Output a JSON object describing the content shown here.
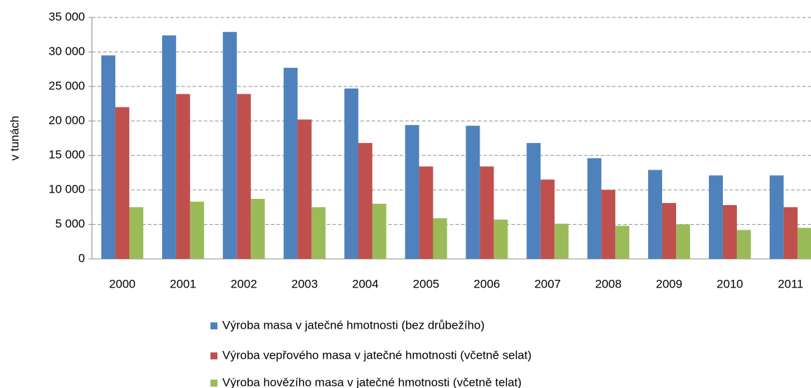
{
  "chart_data": {
    "type": "bar",
    "y_label": "v tunách",
    "categories": [
      "2000",
      "2001",
      "2002",
      "2003",
      "2004",
      "2005",
      "2006",
      "2007",
      "2008",
      "2009",
      "2010",
      "2011"
    ],
    "series": [
      {
        "name": "Výroba masa v jatečné hmotnosti (bez drůbežího)",
        "color": "#4f81bd",
        "values": [
          29500,
          32400,
          32900,
          27700,
          24700,
          19400,
          19300,
          16800,
          14600,
          12900,
          12100,
          12100
        ]
      },
      {
        "name": "Výroba vepřového masa v jatečné hmotnosti (včetně selat)",
        "color": "#c0504d",
        "values": [
          22000,
          23900,
          23900,
          20200,
          16800,
          13400,
          13400,
          11500,
          10000,
          8100,
          7800,
          7500
        ]
      },
      {
        "name": "Výroba hovězího masa v jatečné hmotnosti (včetně telat)",
        "color": "#9bbb59",
        "values": [
          7500,
          8300,
          8700,
          7500,
          8000,
          5900,
          5700,
          5100,
          4800,
          5000,
          4200,
          4500
        ]
      }
    ],
    "ylim": [
      0,
      35000
    ],
    "yticks": [
      0,
      {
        "value": 5000,
        "label": "5 000"
      },
      {
        "value": 10000,
        "label": "10 000"
      },
      {
        "value": 15000,
        "label": "15 000"
      },
      {
        "value": 20000,
        "label": "20 000"
      },
      {
        "value": 25000,
        "label": "25 000"
      },
      {
        "value": 30000,
        "label": "30 000"
      },
      {
        "value": 35000,
        "label": "35 000"
      }
    ],
    "grid": true
  }
}
